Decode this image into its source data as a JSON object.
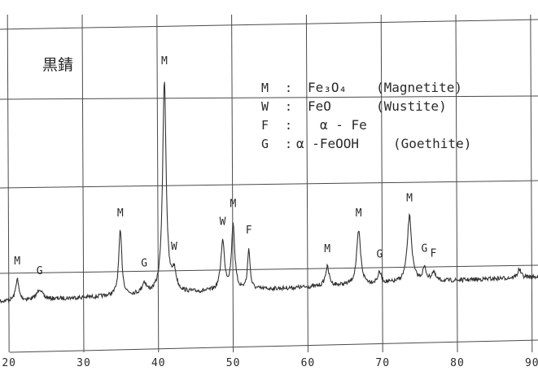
{
  "chart_data": {
    "type": "line",
    "title": "黒錆",
    "xlabel": "",
    "ylabel": "",
    "xlim": [
      19,
      91
    ],
    "x_ticks": [
      "20",
      "30",
      "40",
      "50",
      "60",
      "70",
      "80",
      "90"
    ],
    "grid": true,
    "legend_position": "top-right",
    "legend": [
      {
        "key": "M",
        "sep": ":",
        "formula": "Fe₃O₄",
        "name": "(Magnetite)"
      },
      {
        "key": "W",
        "sep": ":",
        "formula": "FeO",
        "name": "(Wustite)"
      },
      {
        "key": "F",
        "sep": ":",
        "formula": "α - Fe",
        "name": ""
      },
      {
        "key": "G",
        "sep": ":",
        "formula": "α -FeOOH",
        "name": "(Goethite)"
      }
    ],
    "peak_labels": [
      {
        "label": "M",
        "x": 21.3
      },
      {
        "label": "G",
        "x": 24.3
      },
      {
        "label": "M",
        "x": 35.1
      },
      {
        "label": "G",
        "x": 38.3
      },
      {
        "label": "M",
        "x": 41.0
      },
      {
        "label": "W",
        "x": 42.3
      },
      {
        "label": "W",
        "x": 48.8
      },
      {
        "label": "M",
        "x": 50.2
      },
      {
        "label": "F",
        "x": 52.3
      },
      {
        "label": "M",
        "x": 62.8
      },
      {
        "label": "M",
        "x": 67.0
      },
      {
        "label": "G",
        "x": 69.8
      },
      {
        "label": "M",
        "x": 73.8
      },
      {
        "label": "G",
        "x": 75.8
      },
      {
        "label": "F",
        "x": 77.0
      }
    ],
    "peaks": [
      {
        "x": 21.3,
        "h": 0.1,
        "w": 0.25
      },
      {
        "x": 24.3,
        "h": 0.05,
        "w": 0.4
      },
      {
        "x": 35.1,
        "h": 0.3,
        "w": 0.25
      },
      {
        "x": 38.3,
        "h": 0.05,
        "w": 0.35
      },
      {
        "x": 41.0,
        "h": 1.0,
        "w": 0.28
      },
      {
        "x": 42.3,
        "h": 0.09,
        "w": 0.35
      },
      {
        "x": 48.8,
        "h": 0.23,
        "w": 0.3
      },
      {
        "x": 50.2,
        "h": 0.31,
        "w": 0.25
      },
      {
        "x": 52.3,
        "h": 0.19,
        "w": 0.2
      },
      {
        "x": 62.8,
        "h": 0.09,
        "w": 0.3
      },
      {
        "x": 67.0,
        "h": 0.25,
        "w": 0.32
      },
      {
        "x": 69.8,
        "h": 0.05,
        "w": 0.3
      },
      {
        "x": 73.8,
        "h": 0.31,
        "w": 0.35
      },
      {
        "x": 75.8,
        "h": 0.06,
        "w": 0.3
      },
      {
        "x": 77.0,
        "h": 0.04,
        "w": 0.3
      },
      {
        "x": 88.5,
        "h": 0.04,
        "w": 0.25
      }
    ],
    "colors": {
      "trace": "#333333",
      "grid": "#4a4a4a",
      "text": "#2a2a2a"
    }
  }
}
